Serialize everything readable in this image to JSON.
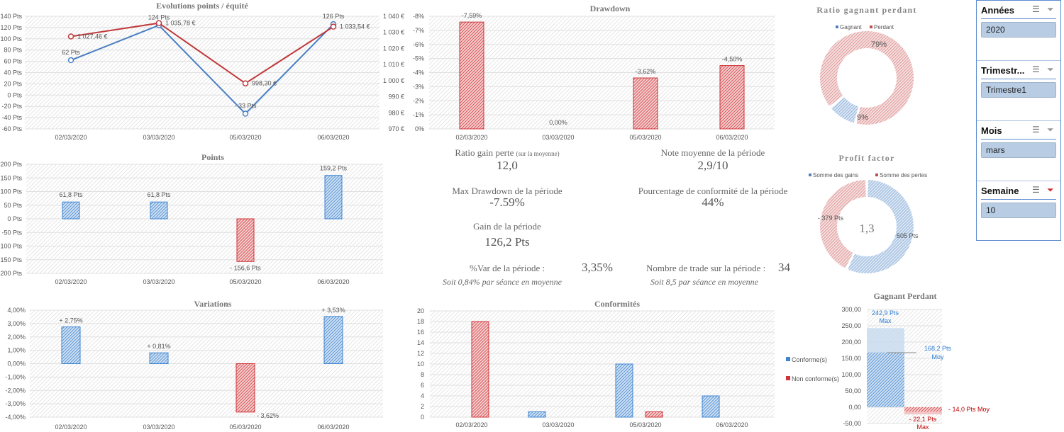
{
  "colors": {
    "blue": "#4a86c8",
    "red": "#c0393b",
    "light_blue": "#b8cce4"
  },
  "categories": [
    "02/03/2020",
    "03/03/2020",
    "05/03/2020",
    "06/03/2020"
  ],
  "chart_data": [
    {
      "type": "line",
      "title": "Evolutions points / équité",
      "yticks_left": [
        "140 Pts",
        "120 Pts",
        "100 Pts",
        "80 Pts",
        "60 Pts",
        "40 Pts",
        "20 Pts",
        "0 Pts",
        "-20 Pts",
        "-40 Pts",
        "-60 Pts"
      ],
      "yticks_right": [
        "1 040 €",
        "1 030 €",
        "1 020 €",
        "1 010 €",
        "1 000 €",
        "990 €",
        "980 €",
        "970 €"
      ],
      "ylim_left": [
        -60,
        140
      ],
      "ylim_right": [
        970,
        1040
      ],
      "series": [
        {
          "values": [
            62,
            124,
            -33,
            126
          ],
          "labels": [
            "62 Pts",
            "124 Pts",
            "- 33 Pts",
            "126 Pts"
          ]
        },
        {
          "values": [
            1027.46,
            1035.78,
            998.3,
            1033.54
          ],
          "labels": [
            "1 027,46 €",
            "1 035,78 €",
            "998,30 €",
            "1 033,54 €"
          ]
        }
      ]
    },
    {
      "type": "bar",
      "title": "Drawdown",
      "yticks": [
        "-8%",
        "-7%",
        "-6%",
        "-5%",
        "-4%",
        "-3%",
        "-2%",
        "-1%",
        "0%"
      ],
      "ylim": [
        0,
        -8
      ],
      "values": [
        -7.59,
        0,
        -3.62,
        -4.5
      ],
      "labels": [
        "-7,59%",
        "0,00%",
        "-3,62%",
        "-4,50%"
      ]
    },
    {
      "type": "bar",
      "title": "Points",
      "yticks": [
        "200 Pts",
        "150 Pts",
        "100 Pts",
        "50 Pts",
        "0 Pts",
        "-50 Pts",
        "-100 Pts",
        "-150 Pts",
        "-200 Pts"
      ],
      "ylim": [
        -200,
        200
      ],
      "values": [
        61.8,
        61.8,
        -156.6,
        159.2
      ],
      "labels": [
        "61,8 Pts",
        "61,8 Pts",
        "- 156,6 Pts",
        "159,2 Pts"
      ]
    },
    {
      "type": "bar",
      "title": "Variations",
      "yticks": [
        "4,00%",
        "3,00%",
        "2,00%",
        "1,00%",
        "0,00%",
        "-1,00%",
        "-2,00%",
        "-3,00%",
        "-4,00%"
      ],
      "ylim": [
        -4,
        4
      ],
      "values": [
        2.75,
        0.81,
        -3.62,
        3.53
      ],
      "labels": [
        "+ 2,75%",
        "+ 0,81%",
        "- 3,62%",
        "+ 3,53%"
      ]
    },
    {
      "type": "bar",
      "title": "Conformités",
      "yticks": [
        "20",
        "18",
        "16",
        "14",
        "12",
        "10",
        "8",
        "6",
        "4",
        "2",
        "0"
      ],
      "ylim": [
        0,
        20
      ],
      "series": [
        {
          "name": "Conforme(s)",
          "values": [
            0,
            1,
            10,
            4
          ]
        },
        {
          "name": "Non conforme(s)",
          "values": [
            18,
            0,
            1,
            0
          ]
        }
      ]
    },
    {
      "type": "bar",
      "title": "Gagnant Perdant",
      "yticks": [
        "300,00",
        "250,00",
        "200,00",
        "150,00",
        "100,00",
        "50,00",
        "0,00",
        "-50,00"
      ],
      "ylim": [
        -50,
        300
      ],
      "values": {
        "gagnant_moy": 168.2,
        "gagnant_max": 242.9,
        "perdant_moy": -14.0,
        "perdant_max": -22.1
      },
      "labels": {
        "gagnant_max": "242,9 Pts",
        "max": "Max",
        "gagnant_moy": "168,2 Pts",
        "moy": "Moy",
        "perdant_moy": "- 14,0 Pts Moy",
        "perdant_max": "- 22,1 Pts"
      }
    },
    {
      "type": "pie",
      "title": "Ratio gagnant perdant",
      "legend": [
        "Gagnant",
        "Perdant"
      ],
      "values": [
        9,
        79
      ],
      "labels": [
        "9%",
        "79%"
      ]
    },
    {
      "type": "pie",
      "title": "Profit factor",
      "legend": [
        "Somme des gains",
        "Somme des pertes"
      ],
      "values": [
        505,
        379
      ],
      "labels": [
        "505 Pts",
        "- 379 Pts"
      ],
      "center": "1,3"
    }
  ],
  "kpis": {
    "ratio_label": "Ratio gain perte",
    "ratio_sub": "(sur la moyenne)",
    "ratio_value": "12,0",
    "note_label": "Note moyenne de la période",
    "note_value": "2,9/10",
    "dd_label": "Max Drawdown de la période",
    "dd_value": "-7.59%",
    "conf_label": "Pourcentage de conformité de la période",
    "conf_value": "44%",
    "gain_label": "Gain de la période",
    "gain_value": "126,2 Pts",
    "var_label": "%Var de la période :",
    "var_value": "3,35%",
    "var_sub": "Soit 0,84% par séance en moyenne",
    "trades_label": "Nombre de trade sur la période :",
    "trades_value": "34",
    "trades_sub": "Soit 8,5 par séance en moyenne"
  },
  "slicers": [
    {
      "title": "Années",
      "value": "2020"
    },
    {
      "title": "Trimestr...",
      "value": "Trimestre1"
    },
    {
      "title": "Mois",
      "value": "mars"
    },
    {
      "title": "Semaine",
      "value": "10"
    }
  ]
}
